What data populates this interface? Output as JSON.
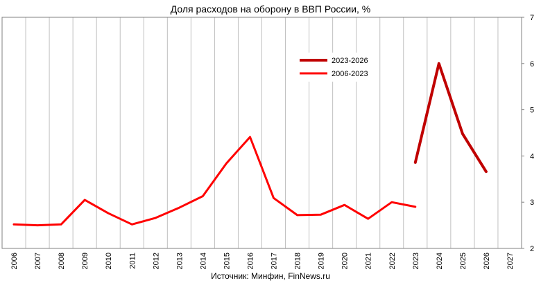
{
  "chart_data": {
    "type": "line",
    "title": "Доля расходов на оборону в ВВП России, %",
    "source": "Источник: Минфин, FinNews.ru",
    "x": [
      "2006",
      "2007",
      "2008",
      "2009",
      "2010",
      "2011",
      "2012",
      "2013",
      "2014",
      "2015",
      "2016",
      "2017",
      "2018",
      "2019",
      "2020",
      "2021",
      "2022",
      "2023",
      "2024",
      "2025",
      "2026",
      "2027"
    ],
    "ylim": [
      2,
      7
    ],
    "yticks": [
      "2",
      "3",
      "4",
      "5",
      "6",
      "7"
    ],
    "grid": true,
    "legend_position": "top-right",
    "series": [
      {
        "name": "2023-2026",
        "color": "#c00000",
        "x": [
          "2023",
          "2024",
          "2025",
          "2026"
        ],
        "values": [
          3.86,
          6.0,
          4.48,
          3.66
        ]
      },
      {
        "name": "2006-2023",
        "color": "#ff0000",
        "x": [
          "2006",
          "2007",
          "2008",
          "2009",
          "2010",
          "2011",
          "2012",
          "2013",
          "2014",
          "2015",
          "2016",
          "2017",
          "2018",
          "2019",
          "2020",
          "2021",
          "2022",
          "2023"
        ],
        "values": [
          2.52,
          2.5,
          2.52,
          3.05,
          2.76,
          2.52,
          2.66,
          2.88,
          3.13,
          3.84,
          4.41,
          3.09,
          2.72,
          2.73,
          2.94,
          2.64,
          3.0,
          2.9
        ]
      }
    ]
  }
}
